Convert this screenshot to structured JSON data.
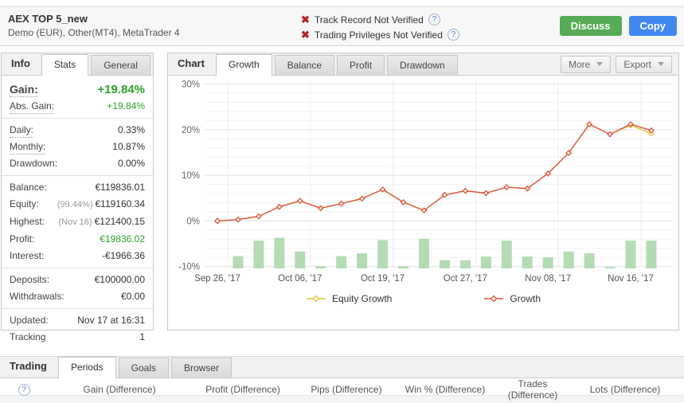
{
  "header": {
    "title": "AEX TOP 5_new",
    "subtitle": "Demo (EUR), Other(MT4), MetaTrader 4",
    "verifications": [
      {
        "label": "Track Record Not Verified"
      },
      {
        "label": "Trading Privileges Not Verified"
      }
    ],
    "buttons": {
      "discuss": "Discuss",
      "copy": "Copy"
    },
    "colors": {
      "discuss_bg": "#56ab56",
      "copy_bg": "#4187f0",
      "error_x": "#b32421"
    }
  },
  "info_panel": {
    "label": "Info",
    "tabs": [
      {
        "label": "Stats",
        "active": true
      },
      {
        "label": "General",
        "active": false
      }
    ],
    "groups": [
      [
        {
          "label": "Gain:",
          "value": "+19.84%",
          "green": true,
          "dotted": true,
          "big": true
        },
        {
          "label": "Abs. Gain:",
          "value": "+19.84%",
          "green": true,
          "dotted": true
        }
      ],
      [
        {
          "label": "Daily:",
          "value": "0.33%",
          "dotted": true
        },
        {
          "label": "Monthly:",
          "value": "10.87%",
          "dotted": true
        },
        {
          "label": "Drawdown:",
          "value": "0.00%"
        }
      ],
      [
        {
          "label": "Balance:",
          "value": "€119836.01"
        },
        {
          "label": "Equity:",
          "prefix": "(99.44%)",
          "value": "€119160.34"
        },
        {
          "label": "Highest:",
          "prefix": "(Nov 16)",
          "value": "€121400.15"
        },
        {
          "label": "Profit:",
          "value": "€19836.02",
          "green": true
        },
        {
          "label": "Interest:",
          "value": "-€1966.36"
        }
      ],
      [
        {
          "label": "Deposits:",
          "value": "€100000.00"
        },
        {
          "label": "Withdrawals:",
          "value": "€0.00"
        }
      ],
      [
        {
          "label": "Updated:",
          "value": "Nov 17 at 16:31"
        },
        {
          "label": "Tracking",
          "value": "1"
        }
      ]
    ]
  },
  "chart_panel": {
    "label": "Chart",
    "tabs": [
      {
        "label": "Growth",
        "active": true
      },
      {
        "label": "Balance",
        "active": false
      },
      {
        "label": "Profit",
        "active": false
      },
      {
        "label": "Drawdown",
        "active": false
      }
    ],
    "actions": [
      {
        "label": "More"
      },
      {
        "label": "Export"
      }
    ]
  },
  "chart_data": {
    "type": "line",
    "title": "Growth",
    "ylabel": "%",
    "ylim": [
      -10.4,
      30.8
    ],
    "yticks": [
      -10,
      0,
      10,
      20,
      30
    ],
    "grid": true,
    "legend_position": "bottom",
    "x_ticks": {
      "point_indices": [
        0,
        4,
        8,
        12,
        16,
        20
      ],
      "labels": [
        "Sep 26, '17",
        "Oct 06, '17",
        "Oct 19, '17",
        "Oct 27, '17",
        "Nov 08, '17",
        "Nov 16, '17"
      ]
    },
    "series": [
      {
        "name": "Equity Growth",
        "color": "#e8c33f",
        "values": [
          0.0,
          0.3,
          1.0,
          3.1,
          4.4,
          2.8,
          3.8,
          4.9,
          6.9,
          4.1,
          2.3,
          5.7,
          6.6,
          6.1,
          7.4,
          7.1,
          10.4,
          14.9,
          21.2,
          19.0,
          21.0,
          19.16
        ]
      },
      {
        "name": "Growth",
        "color": "#e2543e",
        "values": [
          0.0,
          0.3,
          1.0,
          3.1,
          4.4,
          2.8,
          3.8,
          4.9,
          6.9,
          4.1,
          2.3,
          5.7,
          6.6,
          6.1,
          7.4,
          7.1,
          10.4,
          14.9,
          21.2,
          19.0,
          21.2,
          19.84
        ]
      }
    ],
    "bars": {
      "name": "activity-histogram",
      "color": "#b5dbb5",
      "start_point_index": 1,
      "heights_pct": [
        2.7,
        6.1,
        6.7,
        3.7,
        0.5,
        2.7,
        3.3,
        6.2,
        0.5,
        6.5,
        1.8,
        1.8,
        2.6,
        6.1,
        2.6,
        2.4,
        3.7,
        3.3,
        0.3,
        6.1,
        6.1
      ]
    }
  },
  "bottom_panel": {
    "label": "Trading",
    "tabs": [
      {
        "label": "Periods",
        "active": true
      },
      {
        "label": "Goals",
        "active": false
      },
      {
        "label": "Browser",
        "active": false
      }
    ],
    "columns": [
      "Gain (Difference)",
      "Profit (Difference)",
      "Pips (Difference)",
      "Win % (Difference)",
      "Trades (Difference)",
      "Lots (Difference)"
    ]
  }
}
